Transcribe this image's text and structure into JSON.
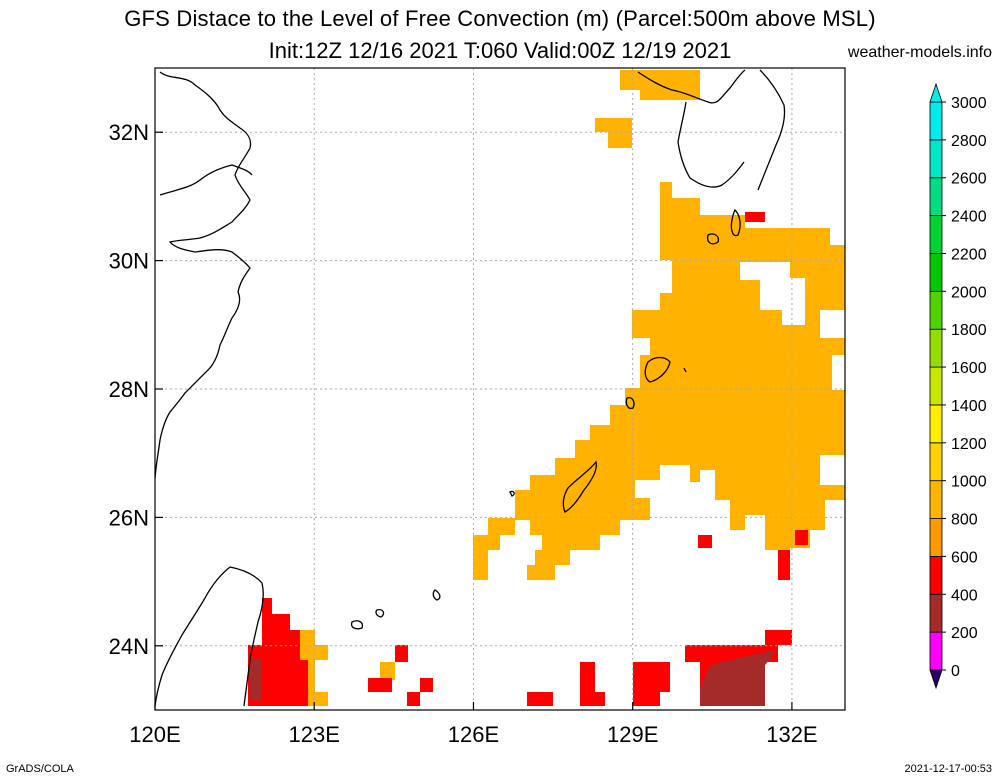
{
  "title": {
    "line1": "GFS Distace to the Level of Free Convection (m) (Parcel:500m above MSL)",
    "line2": "Init:12Z 12/16 2021 T:060 Valid:00Z 12/19 2021",
    "site": "weather-models.info"
  },
  "footer": {
    "left": "GrADS/COLA",
    "right": "2021-12-17-00:53"
  },
  "map": {
    "lon_range": [
      120,
      133
    ],
    "lat_range": [
      23,
      33
    ],
    "x_ticks": [
      {
        "value": 120,
        "label": "120E"
      },
      {
        "value": 123,
        "label": "123E"
      },
      {
        "value": 126,
        "label": "126E"
      },
      {
        "value": 129,
        "label": "129E"
      },
      {
        "value": 132,
        "label": "132E"
      }
    ],
    "y_ticks": [
      {
        "value": 24,
        "label": "24N"
      },
      {
        "value": 26,
        "label": "26N"
      },
      {
        "value": 28,
        "label": "28N"
      },
      {
        "value": 30,
        "label": "30N"
      },
      {
        "value": 32,
        "label": "32N"
      }
    ],
    "grid": true
  },
  "colorbar": {
    "levels": [
      "0",
      "200",
      "400",
      "600",
      "800",
      "1000",
      "1200",
      "1400",
      "1600",
      "1800",
      "2000",
      "2200",
      "2400",
      "2600",
      "2800",
      "3000"
    ],
    "colors": [
      "#3a0a86",
      "#ff00ff",
      "#a52a2a",
      "#ff0000",
      "#ff9900",
      "#ffb400",
      "#ffd000",
      "#ffee00",
      "#c8e600",
      "#96dc00",
      "#50d200",
      "#00c800",
      "#00d232",
      "#00dc82",
      "#00e6c8",
      "#00ebeb"
    ],
    "under_color": "#2b0066",
    "over_color": "#00eeee"
  },
  "colors": {
    "orange": "#ffa500",
    "light_orange": "#ffbf00",
    "red": "#ff0000",
    "brown": "#a52a2a"
  }
}
